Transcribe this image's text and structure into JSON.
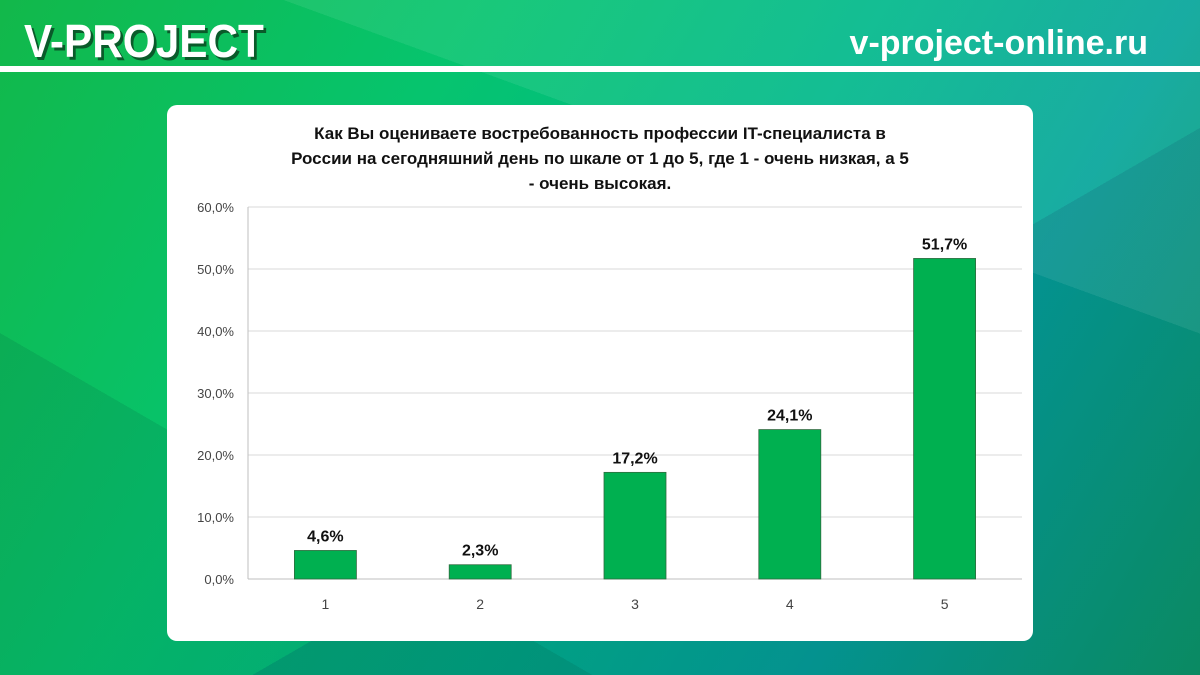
{
  "header": {
    "logo": "V-PROJECT",
    "site": "v-project-online.ru"
  },
  "colors": {
    "bar": "#00b050",
    "bar_border": "#2f6b3f",
    "grid": "#d9d9d9"
  },
  "chart_data": {
    "type": "bar",
    "title_lines": [
      "Как Вы оцениваете востребованность профессии IT-специалиста в",
      "России на сегодняшний день по шкале от 1 до 5, где 1 - очень низкая, а 5",
      "- очень высокая."
    ],
    "categories": [
      "1",
      "2",
      "3",
      "4",
      "5"
    ],
    "values": [
      4.6,
      2.3,
      17.2,
      24.1,
      51.7
    ],
    "data_labels": [
      "4,6%",
      "2,3%",
      "17,2%",
      "24,1%",
      "51,7%"
    ],
    "ylim": [
      0,
      60
    ],
    "yticks": [
      "0,0%",
      "10,0%",
      "20,0%",
      "30,0%",
      "40,0%",
      "50,0%",
      "60,0%"
    ],
    "grid": true,
    "legend": "none"
  }
}
